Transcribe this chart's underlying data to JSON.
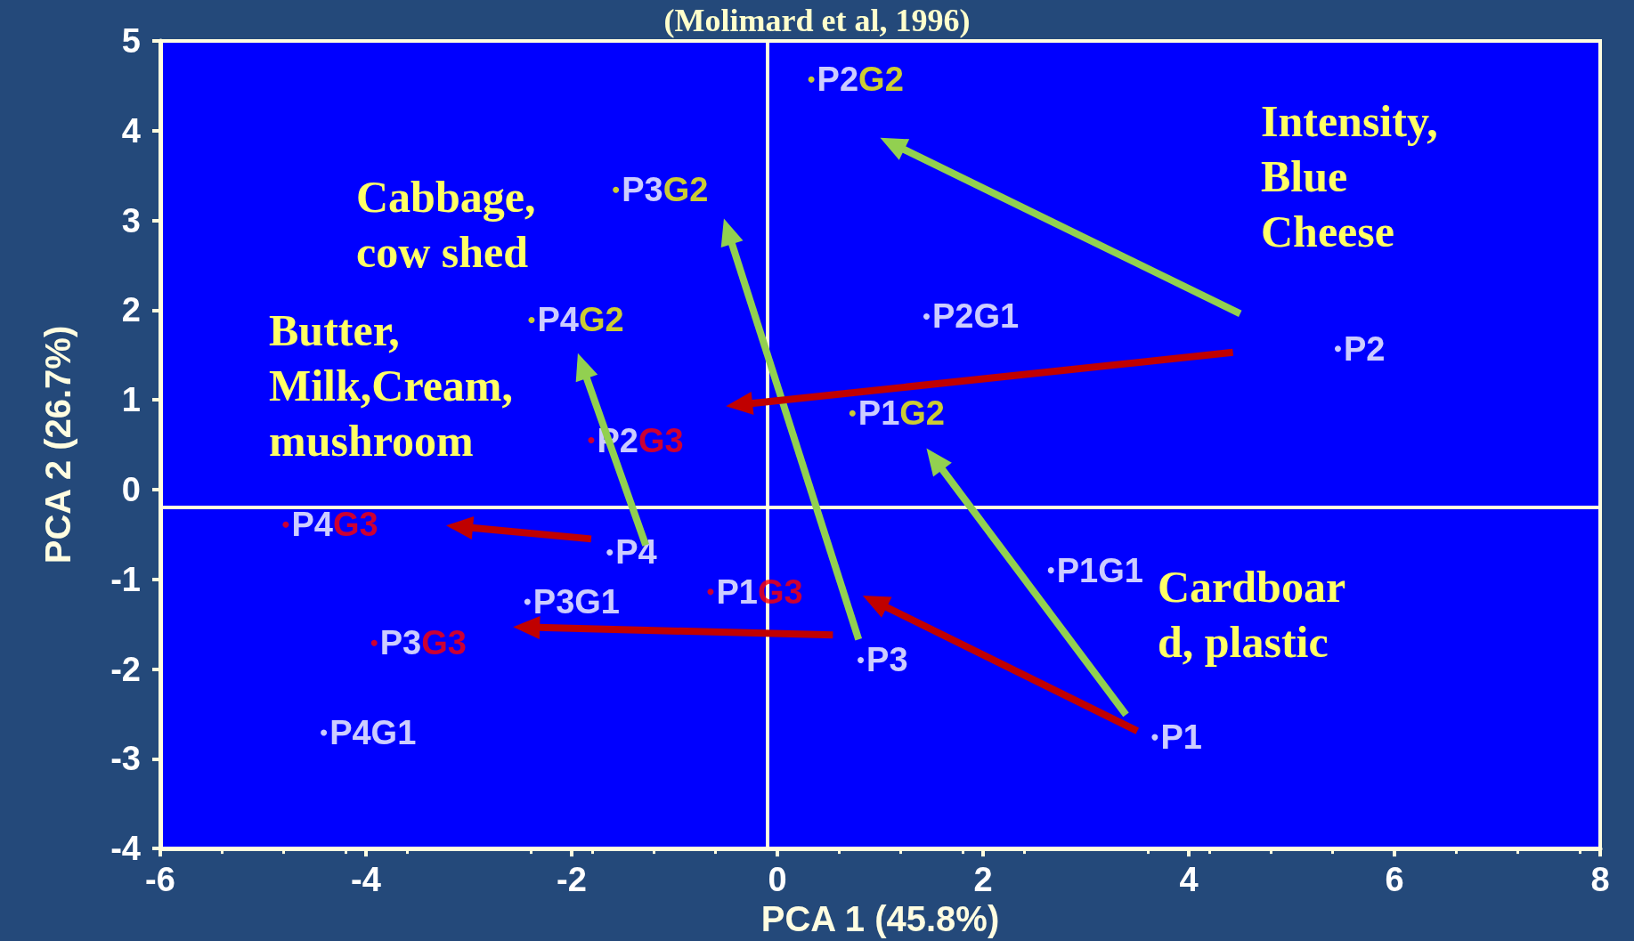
{
  "chart_data": {
    "type": "scatter",
    "title": "(Molimard et al, 1996)",
    "xlabel": "PCA 1 (45.8%)",
    "ylabel": "PCA 2 (26.7%)",
    "xlim": [
      -6,
      8
    ],
    "xticks": [
      -6,
      -4,
      -2,
      0,
      2,
      4,
      6,
      8
    ],
    "ylim": [
      -4,
      5
    ],
    "yticks": [
      -4,
      -3,
      -2,
      -1,
      0,
      1,
      2,
      3,
      4,
      5
    ],
    "grid": false,
    "marker": "circle",
    "ref_lines": [
      {
        "axis": "x",
        "value": -0.1,
        "color": "#fffde0"
      },
      {
        "axis": "y",
        "value": -0.2,
        "color": "#fffde0"
      }
    ],
    "annotations": [
      "Intensity,\nBlue\nCheese",
      "Cabbage,\ncow shed",
      "Butter,\nMilk,Cream,\nmushroom",
      "Cardboar\nd, plastic"
    ],
    "series": [
      {
        "color": "#ffffff",
        "x": [
          5.45,
          3.67,
          0.81,
          -1.63
        ],
        "values": [
          1.57,
          -2.76,
          -1.9,
          -0.7
        ],
        "value_labels": [
          "P2",
          "P1",
          "P3",
          "P4"
        ]
      },
      {
        "color": "#ffffff",
        "x": [
          1.45,
          2.66,
          -2.43,
          -4.41
        ],
        "values": [
          1.93,
          -0.9,
          -1.25,
          -2.71
        ],
        "value_labels": [
          "P2G1",
          "P1G1",
          "P3G1",
          "P4G1"
        ]
      },
      {
        "color": "#ffff00",
        "x": [
          0.33,
          0.73,
          -1.57,
          -2.39
        ],
        "values": [
          4.57,
          0.85,
          3.34,
          1.89
        ],
        "value_labels": [
          "P2G2",
          "P1G2",
          "P3G2",
          "P4G2"
        ]
      },
      {
        "color": "#ff0000",
        "x": [
          -1.81,
          -0.65,
          -3.92,
          -4.78
        ],
        "values": [
          0.55,
          -1.14,
          -1.71,
          -0.39
        ],
        "value_labels": [
          "P2G3",
          "P1G3",
          "P3G3",
          "P4G3"
        ]
      }
    ]
  }
}
